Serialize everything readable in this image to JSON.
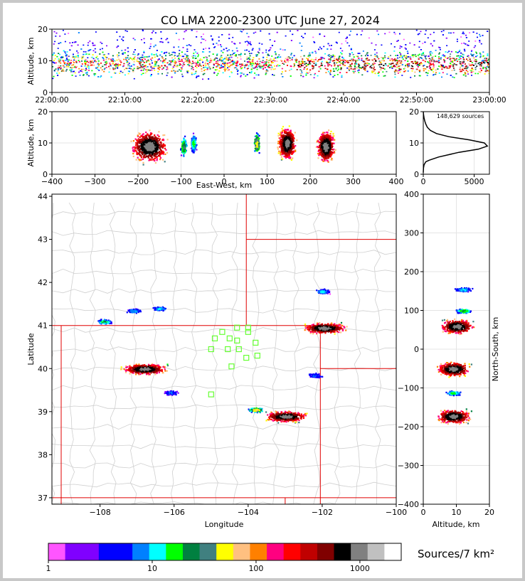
{
  "title": "CO LMA 2200-2300 UTC June 27, 2024",
  "sources_note": "148,629 sources",
  "colorbar_label": "Sources/7 km²",
  "chart_data": [
    {
      "type": "heatmap",
      "id": "time-height",
      "ylabel": "Altitude, km",
      "xlim": [
        "22:00:00",
        "23:00:00"
      ],
      "ylim": [
        0,
        20
      ],
      "xticks": [
        "22:00:00",
        "22:10:00",
        "22:20:00",
        "22:30:00",
        "22:40:00",
        "22:50:00",
        "23:00:00"
      ],
      "yticks": [
        0,
        10,
        20
      ]
    },
    {
      "type": "heatmap",
      "id": "ew-altitude",
      "xlabel": "East-West, km",
      "ylabel": "Altitude, km",
      "xlim": [
        -400,
        400
      ],
      "ylim": [
        0,
        20
      ],
      "xticks": [
        -400,
        -300,
        -200,
        -100,
        0,
        100,
        200,
        300,
        400
      ],
      "yticks": [
        0,
        10,
        20
      ],
      "blobs": [
        {
          "x": -175,
          "alt": 9,
          "intensity": 1000
        },
        {
          "x": -95,
          "alt": 9,
          "intensity": 30
        },
        {
          "x": -72,
          "alt": 10,
          "intensity": 15
        },
        {
          "x": 75,
          "alt": 10,
          "intensity": 60
        },
        {
          "x": 145,
          "alt": 10,
          "intensity": 1000
        },
        {
          "x": 235,
          "alt": 9,
          "intensity": 1000
        }
      ]
    },
    {
      "type": "line",
      "id": "altitude-histogram",
      "xlim": [
        0,
        6500
      ],
      "ylim": [
        0,
        20
      ],
      "xticks": [
        0,
        5000
      ],
      "yticks": [
        0,
        10,
        20
      ],
      "points": [
        [
          0,
          0.5
        ],
        [
          20,
          2
        ],
        [
          80,
          3
        ],
        [
          250,
          4
        ],
        [
          600,
          4.5
        ],
        [
          1500,
          5.5
        ],
        [
          3500,
          7
        ],
        [
          5400,
          8
        ],
        [
          6300,
          9
        ],
        [
          6000,
          10
        ],
        [
          4500,
          11
        ],
        [
          2500,
          12
        ],
        [
          1300,
          13
        ],
        [
          700,
          14
        ],
        [
          400,
          15
        ],
        [
          250,
          16
        ],
        [
          150,
          17
        ],
        [
          80,
          18
        ],
        [
          30,
          19
        ],
        [
          0,
          20
        ]
      ]
    },
    {
      "type": "heatmap",
      "id": "plan-view",
      "xlabel": "Longitude",
      "ylabel": "Latitude",
      "xlim": [
        -109.3,
        -100.0
      ],
      "ylim": [
        36.85,
        44.05
      ],
      "xticks": [
        -108,
        -106,
        -104,
        -102,
        -100
      ],
      "yticks": [
        37,
        38,
        39,
        40,
        41,
        42,
        43,
        44
      ],
      "blobs": [
        {
          "lon": -106.8,
          "lat": 40.0,
          "intensity": 1000
        },
        {
          "lon": -107.9,
          "lat": 41.1,
          "intensity": 20
        },
        {
          "lon": -107.1,
          "lat": 41.35,
          "intensity": 8
        },
        {
          "lon": -106.4,
          "lat": 41.4,
          "intensity": 8
        },
        {
          "lon": -103.0,
          "lat": 38.9,
          "intensity": 1000
        },
        {
          "lon": -103.8,
          "lat": 39.05,
          "intensity": 60
        },
        {
          "lon": -101.95,
          "lat": 40.95,
          "intensity": 1000
        },
        {
          "lon": -102.0,
          "lat": 41.8,
          "intensity": 10
        },
        {
          "lon": -106.1,
          "lat": 39.45,
          "intensity": 5
        },
        {
          "lon": -102.2,
          "lat": 39.85,
          "intensity": 5
        }
      ],
      "stations": [
        [
          -104.0,
          40.95
        ],
        [
          -104.3,
          40.95
        ],
        [
          -104.0,
          40.85
        ],
        [
          -104.7,
          40.85
        ],
        [
          -104.9,
          40.7
        ],
        [
          -104.5,
          40.7
        ],
        [
          -104.3,
          40.65
        ],
        [
          -103.8,
          40.6
        ],
        [
          -105.0,
          40.45
        ],
        [
          -104.55,
          40.45
        ],
        [
          -104.25,
          40.45
        ],
        [
          -103.75,
          40.3
        ],
        [
          -104.05,
          40.25
        ],
        [
          -104.45,
          40.05
        ],
        [
          -105.0,
          39.4
        ]
      ]
    },
    {
      "type": "heatmap",
      "id": "ns-altitude",
      "xlabel": "Altitude, km",
      "ylabel": "North-South, km",
      "xlim": [
        0,
        20
      ],
      "ylim": [
        -400,
        400
      ],
      "xticks": [
        0,
        10,
        20
      ],
      "yticks": [
        400,
        300,
        200,
        100,
        0,
        -100,
        -200,
        -300,
        -400
      ],
      "blobs": [
        {
          "alt": 12,
          "ns": 155,
          "intensity": 10
        },
        {
          "alt": 12,
          "ns": 100,
          "intensity": 20
        },
        {
          "alt": 10,
          "ns": 60,
          "intensity": 1000
        },
        {
          "alt": 9,
          "ns": -50,
          "intensity": 1000
        },
        {
          "alt": 9,
          "ns": -112,
          "intensity": 15
        },
        {
          "alt": 9,
          "ns": -172,
          "intensity": 1000
        }
      ]
    }
  ],
  "colorbar": {
    "colors": [
      "#ff55ff",
      "#8000ff",
      "#8000ff",
      "#0000ff",
      "#0000ff",
      "#0080ff",
      "#00ffff",
      "#00ff00",
      "#008040",
      "#408080",
      "#ffff00",
      "#ffc080",
      "#ff8000",
      "#ff0080",
      "#ff0000",
      "#c00000",
      "#800000",
      "#000000",
      "#808080",
      "#c0c0c0",
      "#ffffff"
    ],
    "range": [
      1,
      2500
    ],
    "ticks": [
      1,
      10,
      100,
      1000
    ]
  }
}
